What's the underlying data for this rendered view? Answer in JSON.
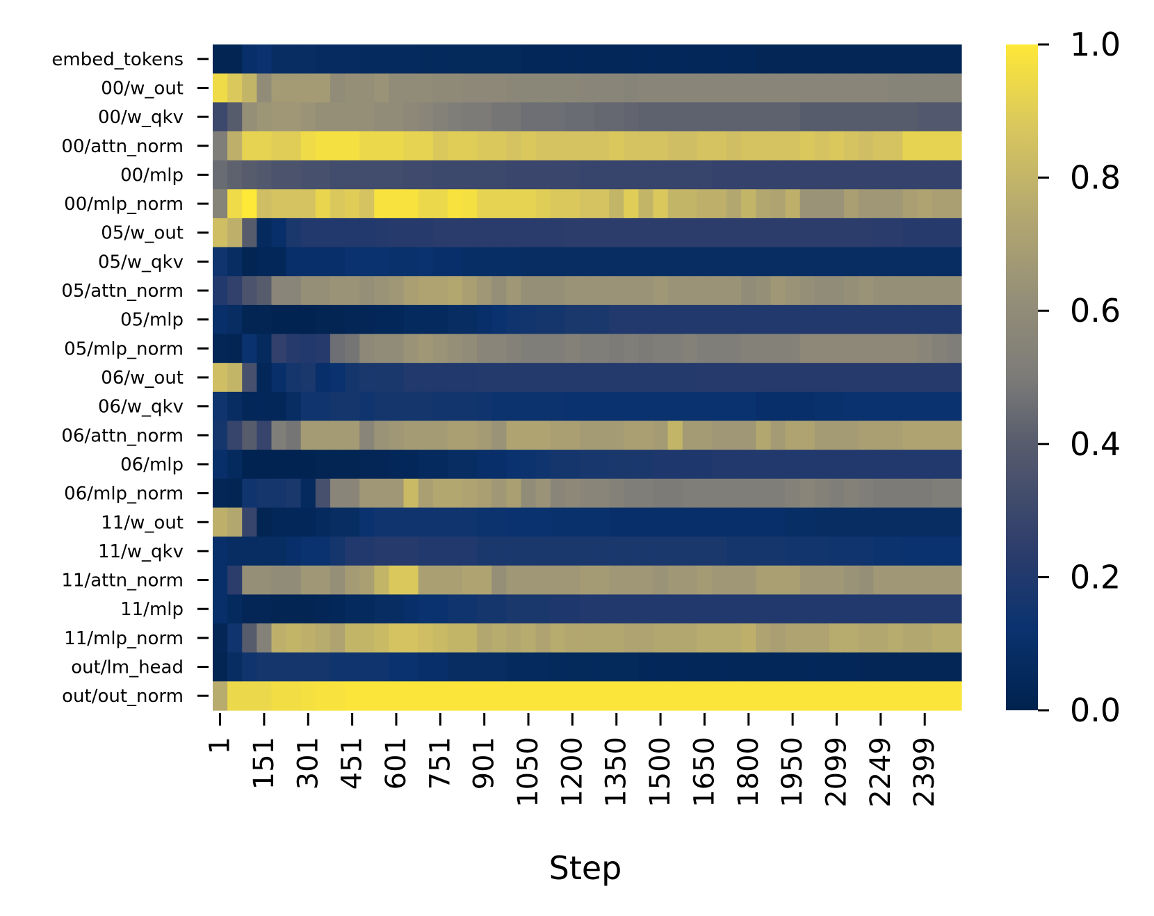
{
  "chart_data": {
    "type": "heatmap",
    "title": "",
    "xlabel": "Step",
    "ylabel": "",
    "colormap": "cividis",
    "colors": {
      "low": "#00224e",
      "mid": "#7c7b78",
      "high": "#fee838"
    },
    "value_range": [
      0,
      1
    ],
    "colorbar_ticks": [
      "0.0",
      "0.2",
      "0.4",
      "0.6",
      "0.8",
      "1.0"
    ],
    "x_tick_labels": [
      "1",
      "151",
      "301",
      "451",
      "601",
      "751",
      "901",
      "1050",
      "1200",
      "1350",
      "1500",
      "1650",
      "1800",
      "1950",
      "2099",
      "2249",
      "2399"
    ],
    "rows": [
      "embed_tokens",
      "00/w_out",
      "00/w_qkv",
      "00/attn_norm",
      "00/mlp",
      "00/mlp_norm",
      "05/w_out",
      "05/w_qkv",
      "05/attn_norm",
      "05/mlp",
      "05/mlp_norm",
      "06/w_out",
      "06/w_qkv",
      "06/attn_norm",
      "06/mlp",
      "06/mlp_norm",
      "11/w_out",
      "11/w_qkv",
      "11/attn_norm",
      "11/mlp",
      "11/mlp_norm",
      "out/lm_head",
      "out/out_norm"
    ],
    "n_columns": 51,
    "values": [
      [
        0.02,
        0.02,
        0.1,
        0.12,
        0.08,
        0.08,
        0.08,
        0.07,
        0.07,
        0.07,
        0.06,
        0.06,
        0.06,
        0.06,
        0.05,
        0.05,
        0.05,
        0.05,
        0.05,
        0.05,
        0.05,
        0.04,
        0.04,
        0.04,
        0.04,
        0.04,
        0.04,
        0.04,
        0.04,
        0.04,
        0.04,
        0.04,
        0.04,
        0.04,
        0.04,
        0.04,
        0.04,
        0.03,
        0.03,
        0.03,
        0.03,
        0.03,
        0.03,
        0.03,
        0.03,
        0.03,
        0.03,
        0.03,
        0.03,
        0.03,
        0.03
      ],
      [
        0.95,
        0.88,
        0.8,
        0.6,
        0.68,
        0.68,
        0.68,
        0.68,
        0.6,
        0.62,
        0.62,
        0.64,
        0.6,
        0.6,
        0.6,
        0.59,
        0.59,
        0.58,
        0.58,
        0.58,
        0.57,
        0.57,
        0.57,
        0.57,
        0.57,
        0.56,
        0.56,
        0.56,
        0.55,
        0.56,
        0.56,
        0.56,
        0.56,
        0.56,
        0.56,
        0.56,
        0.56,
        0.56,
        0.56,
        0.56,
        0.56,
        0.56,
        0.56,
        0.56,
        0.56,
        0.56,
        0.55,
        0.55,
        0.55,
        0.55,
        0.55
      ],
      [
        0.3,
        0.4,
        0.62,
        0.65,
        0.66,
        0.66,
        0.64,
        0.62,
        0.62,
        0.62,
        0.62,
        0.6,
        0.6,
        0.58,
        0.56,
        0.54,
        0.52,
        0.5,
        0.5,
        0.48,
        0.48,
        0.46,
        0.46,
        0.46,
        0.45,
        0.45,
        0.44,
        0.44,
        0.43,
        0.42,
        0.42,
        0.42,
        0.42,
        0.42,
        0.42,
        0.42,
        0.42,
        0.42,
        0.42,
        0.42,
        0.4,
        0.4,
        0.4,
        0.4,
        0.4,
        0.4,
        0.4,
        0.4,
        0.38,
        0.38,
        0.38
      ],
      [
        0.52,
        0.78,
        0.92,
        0.92,
        0.9,
        0.9,
        0.95,
        0.97,
        0.97,
        0.97,
        0.94,
        0.94,
        0.94,
        0.92,
        0.92,
        0.88,
        0.9,
        0.9,
        0.88,
        0.88,
        0.86,
        0.88,
        0.86,
        0.86,
        0.86,
        0.86,
        0.86,
        0.88,
        0.86,
        0.86,
        0.86,
        0.84,
        0.84,
        0.86,
        0.86,
        0.84,
        0.86,
        0.86,
        0.86,
        0.86,
        0.88,
        0.86,
        0.88,
        0.86,
        0.84,
        0.86,
        0.86,
        0.92,
        0.92,
        0.92,
        0.92
      ],
      [
        0.45,
        0.42,
        0.4,
        0.38,
        0.36,
        0.36,
        0.34,
        0.34,
        0.32,
        0.32,
        0.32,
        0.32,
        0.32,
        0.31,
        0.31,
        0.3,
        0.3,
        0.3,
        0.3,
        0.3,
        0.29,
        0.29,
        0.29,
        0.29,
        0.29,
        0.28,
        0.28,
        0.28,
        0.28,
        0.28,
        0.28,
        0.28,
        0.28,
        0.28,
        0.27,
        0.27,
        0.27,
        0.27,
        0.27,
        0.27,
        0.27,
        0.27,
        0.27,
        0.27,
        0.27,
        0.27,
        0.27,
        0.27,
        0.27,
        0.27,
        0.27
      ],
      [
        0.55,
        0.95,
        1.0,
        0.84,
        0.86,
        0.86,
        0.86,
        0.93,
        0.88,
        0.9,
        0.86,
        0.98,
        0.98,
        0.98,
        0.94,
        0.94,
        0.98,
        0.97,
        0.92,
        0.92,
        0.92,
        0.92,
        0.9,
        0.88,
        0.88,
        0.86,
        0.86,
        0.8,
        0.9,
        0.8,
        0.88,
        0.8,
        0.8,
        0.78,
        0.78,
        0.74,
        0.8,
        0.74,
        0.72,
        0.78,
        0.64,
        0.64,
        0.64,
        0.7,
        0.66,
        0.66,
        0.66,
        0.7,
        0.72,
        0.7,
        0.7
      ],
      [
        0.84,
        0.78,
        0.4,
        0.06,
        0.1,
        0.18,
        0.2,
        0.2,
        0.2,
        0.2,
        0.2,
        0.21,
        0.22,
        0.22,
        0.22,
        0.23,
        0.23,
        0.23,
        0.23,
        0.23,
        0.23,
        0.23,
        0.23,
        0.23,
        0.24,
        0.24,
        0.24,
        0.24,
        0.24,
        0.24,
        0.24,
        0.24,
        0.24,
        0.24,
        0.24,
        0.24,
        0.24,
        0.24,
        0.24,
        0.24,
        0.24,
        0.24,
        0.24,
        0.24,
        0.24,
        0.23,
        0.23,
        0.22,
        0.22,
        0.22,
        0.22
      ],
      [
        0.14,
        0.08,
        0.02,
        0.04,
        0.04,
        0.1,
        0.1,
        0.1,
        0.1,
        0.12,
        0.12,
        0.12,
        0.11,
        0.11,
        0.12,
        0.1,
        0.1,
        0.09,
        0.09,
        0.09,
        0.09,
        0.08,
        0.08,
        0.08,
        0.08,
        0.08,
        0.08,
        0.08,
        0.08,
        0.08,
        0.08,
        0.08,
        0.08,
        0.08,
        0.08,
        0.08,
        0.08,
        0.08,
        0.08,
        0.08,
        0.08,
        0.08,
        0.08,
        0.08,
        0.08,
        0.08,
        0.08,
        0.08,
        0.08,
        0.08,
        0.08
      ],
      [
        0.2,
        0.26,
        0.36,
        0.4,
        0.56,
        0.56,
        0.62,
        0.62,
        0.64,
        0.64,
        0.62,
        0.64,
        0.66,
        0.7,
        0.72,
        0.72,
        0.74,
        0.7,
        0.66,
        0.62,
        0.66,
        0.62,
        0.62,
        0.62,
        0.64,
        0.64,
        0.64,
        0.64,
        0.64,
        0.64,
        0.66,
        0.64,
        0.64,
        0.64,
        0.64,
        0.64,
        0.6,
        0.62,
        0.66,
        0.64,
        0.62,
        0.6,
        0.6,
        0.62,
        0.64,
        0.62,
        0.62,
        0.62,
        0.62,
        0.62,
        0.62
      ],
      [
        0.1,
        0.08,
        0.02,
        0.02,
        0.01,
        0.01,
        0.01,
        0.02,
        0.02,
        0.03,
        0.03,
        0.04,
        0.04,
        0.06,
        0.06,
        0.06,
        0.08,
        0.08,
        0.1,
        0.12,
        0.14,
        0.15,
        0.16,
        0.16,
        0.18,
        0.18,
        0.18,
        0.2,
        0.2,
        0.2,
        0.2,
        0.2,
        0.2,
        0.2,
        0.2,
        0.2,
        0.2,
        0.2,
        0.2,
        0.2,
        0.2,
        0.2,
        0.2,
        0.2,
        0.2,
        0.2,
        0.2,
        0.2,
        0.2,
        0.2,
        0.2
      ],
      [
        0.03,
        0.02,
        0.12,
        0.06,
        0.26,
        0.22,
        0.2,
        0.22,
        0.46,
        0.48,
        0.58,
        0.6,
        0.6,
        0.64,
        0.66,
        0.64,
        0.62,
        0.6,
        0.56,
        0.56,
        0.54,
        0.52,
        0.52,
        0.52,
        0.54,
        0.52,
        0.52,
        0.5,
        0.52,
        0.5,
        0.52,
        0.52,
        0.54,
        0.52,
        0.52,
        0.52,
        0.54,
        0.54,
        0.54,
        0.54,
        0.58,
        0.58,
        0.58,
        0.58,
        0.58,
        0.58,
        0.58,
        0.58,
        0.56,
        0.54,
        0.52
      ],
      [
        0.84,
        0.8,
        0.34,
        0.04,
        0.1,
        0.16,
        0.18,
        0.1,
        0.12,
        0.16,
        0.18,
        0.18,
        0.18,
        0.2,
        0.2,
        0.2,
        0.2,
        0.2,
        0.21,
        0.21,
        0.21,
        0.21,
        0.21,
        0.21,
        0.21,
        0.21,
        0.21,
        0.21,
        0.21,
        0.21,
        0.21,
        0.21,
        0.21,
        0.22,
        0.22,
        0.22,
        0.22,
        0.22,
        0.22,
        0.22,
        0.22,
        0.22,
        0.22,
        0.22,
        0.22,
        0.22,
        0.22,
        0.22,
        0.22,
        0.22,
        0.22
      ],
      [
        0.14,
        0.08,
        0.04,
        0.04,
        0.04,
        0.08,
        0.14,
        0.14,
        0.16,
        0.16,
        0.14,
        0.16,
        0.16,
        0.16,
        0.16,
        0.15,
        0.15,
        0.15,
        0.14,
        0.13,
        0.13,
        0.13,
        0.13,
        0.13,
        0.12,
        0.12,
        0.12,
        0.12,
        0.12,
        0.12,
        0.12,
        0.12,
        0.12,
        0.12,
        0.12,
        0.12,
        0.12,
        0.1,
        0.1,
        0.1,
        0.1,
        0.11,
        0.11,
        0.12,
        0.12,
        0.12,
        0.12,
        0.12,
        0.12,
        0.12,
        0.12
      ],
      [
        0.16,
        0.28,
        0.4,
        0.28,
        0.52,
        0.48,
        0.68,
        0.68,
        0.68,
        0.68,
        0.56,
        0.64,
        0.66,
        0.68,
        0.68,
        0.68,
        0.7,
        0.7,
        0.68,
        0.64,
        0.72,
        0.72,
        0.72,
        0.7,
        0.7,
        0.68,
        0.68,
        0.68,
        0.7,
        0.7,
        0.68,
        0.8,
        0.68,
        0.68,
        0.66,
        0.66,
        0.66,
        0.74,
        0.68,
        0.72,
        0.72,
        0.68,
        0.68,
        0.68,
        0.7,
        0.7,
        0.7,
        0.72,
        0.72,
        0.72,
        0.72
      ],
      [
        0.1,
        0.06,
        0.01,
        0.01,
        0.01,
        0.01,
        0.01,
        0.02,
        0.02,
        0.02,
        0.03,
        0.03,
        0.04,
        0.04,
        0.06,
        0.06,
        0.08,
        0.08,
        0.1,
        0.1,
        0.12,
        0.13,
        0.14,
        0.16,
        0.16,
        0.17,
        0.17,
        0.18,
        0.18,
        0.18,
        0.19,
        0.19,
        0.19,
        0.19,
        0.2,
        0.2,
        0.2,
        0.2,
        0.2,
        0.2,
        0.2,
        0.2,
        0.2,
        0.2,
        0.2,
        0.2,
        0.2,
        0.2,
        0.2,
        0.2,
        0.2
      ],
      [
        0.03,
        0.02,
        0.14,
        0.16,
        0.16,
        0.18,
        0.06,
        0.34,
        0.56,
        0.56,
        0.66,
        0.66,
        0.66,
        0.82,
        0.7,
        0.74,
        0.74,
        0.72,
        0.7,
        0.66,
        0.7,
        0.6,
        0.64,
        0.56,
        0.58,
        0.56,
        0.56,
        0.54,
        0.52,
        0.52,
        0.5,
        0.5,
        0.52,
        0.52,
        0.52,
        0.52,
        0.52,
        0.52,
        0.52,
        0.54,
        0.56,
        0.54,
        0.52,
        0.54,
        0.52,
        0.5,
        0.5,
        0.5,
        0.5,
        0.52,
        0.52
      ],
      [
        0.78,
        0.74,
        0.28,
        0.02,
        0.04,
        0.04,
        0.04,
        0.06,
        0.08,
        0.08,
        0.12,
        0.14,
        0.14,
        0.14,
        0.14,
        0.14,
        0.14,
        0.14,
        0.13,
        0.13,
        0.12,
        0.12,
        0.12,
        0.11,
        0.11,
        0.11,
        0.11,
        0.1,
        0.1,
        0.1,
        0.1,
        0.1,
        0.1,
        0.1,
        0.1,
        0.1,
        0.1,
        0.1,
        0.1,
        0.09,
        0.09,
        0.08,
        0.08,
        0.08,
        0.08,
        0.08,
        0.08,
        0.08,
        0.08,
        0.08,
        0.08
      ],
      [
        0.1,
        0.08,
        0.08,
        0.08,
        0.08,
        0.1,
        0.12,
        0.12,
        0.16,
        0.2,
        0.2,
        0.22,
        0.22,
        0.22,
        0.2,
        0.2,
        0.2,
        0.2,
        0.18,
        0.18,
        0.18,
        0.18,
        0.18,
        0.18,
        0.18,
        0.18,
        0.18,
        0.18,
        0.18,
        0.18,
        0.18,
        0.18,
        0.18,
        0.18,
        0.18,
        0.16,
        0.16,
        0.16,
        0.16,
        0.15,
        0.15,
        0.15,
        0.14,
        0.14,
        0.14,
        0.13,
        0.13,
        0.12,
        0.12,
        0.12,
        0.12
      ],
      [
        0.1,
        0.24,
        0.62,
        0.62,
        0.6,
        0.6,
        0.66,
        0.66,
        0.62,
        0.68,
        0.7,
        0.8,
        0.88,
        0.88,
        0.7,
        0.7,
        0.7,
        0.72,
        0.72,
        0.62,
        0.66,
        0.66,
        0.66,
        0.66,
        0.66,
        0.68,
        0.68,
        0.66,
        0.66,
        0.66,
        0.64,
        0.66,
        0.66,
        0.68,
        0.66,
        0.66,
        0.66,
        0.7,
        0.7,
        0.7,
        0.66,
        0.66,
        0.66,
        0.64,
        0.62,
        0.66,
        0.66,
        0.66,
        0.66,
        0.66,
        0.66
      ],
      [
        0.1,
        0.06,
        0.03,
        0.03,
        0.02,
        0.02,
        0.02,
        0.03,
        0.04,
        0.06,
        0.06,
        0.08,
        0.08,
        0.1,
        0.12,
        0.12,
        0.14,
        0.14,
        0.16,
        0.16,
        0.18,
        0.18,
        0.18,
        0.19,
        0.19,
        0.2,
        0.2,
        0.2,
        0.2,
        0.2,
        0.2,
        0.2,
        0.2,
        0.2,
        0.2,
        0.2,
        0.2,
        0.2,
        0.2,
        0.2,
        0.2,
        0.2,
        0.2,
        0.2,
        0.2,
        0.2,
        0.2,
        0.2,
        0.2,
        0.2,
        0.2
      ],
      [
        0.03,
        0.14,
        0.4,
        0.54,
        0.78,
        0.8,
        0.78,
        0.76,
        0.72,
        0.8,
        0.8,
        0.82,
        0.86,
        0.86,
        0.84,
        0.82,
        0.8,
        0.8,
        0.74,
        0.76,
        0.74,
        0.76,
        0.72,
        0.76,
        0.74,
        0.74,
        0.74,
        0.74,
        0.72,
        0.72,
        0.74,
        0.74,
        0.74,
        0.76,
        0.76,
        0.76,
        0.78,
        0.72,
        0.7,
        0.72,
        0.72,
        0.72,
        0.76,
        0.76,
        0.74,
        0.74,
        0.76,
        0.74,
        0.74,
        0.76,
        0.76
      ],
      [
        0.02,
        0.08,
        0.14,
        0.16,
        0.16,
        0.16,
        0.16,
        0.16,
        0.14,
        0.14,
        0.14,
        0.14,
        0.12,
        0.12,
        0.1,
        0.1,
        0.08,
        0.08,
        0.08,
        0.08,
        0.06,
        0.06,
        0.06,
        0.05,
        0.05,
        0.05,
        0.05,
        0.05,
        0.05,
        0.04,
        0.04,
        0.04,
        0.04,
        0.04,
        0.04,
        0.04,
        0.04,
        0.04,
        0.04,
        0.04,
        0.04,
        0.04,
        0.04,
        0.04,
        0.03,
        0.03,
        0.03,
        0.03,
        0.03,
        0.03,
        0.03
      ],
      [
        0.76,
        0.94,
        0.94,
        0.94,
        0.96,
        0.96,
        0.97,
        0.98,
        0.98,
        0.99,
        0.99,
        0.99,
        0.99,
        0.99,
        0.99,
        0.99,
        0.99,
        0.99,
        0.99,
        0.99,
        0.99,
        0.99,
        0.99,
        0.99,
        0.99,
        0.99,
        0.99,
        0.99,
        0.99,
        0.99,
        0.99,
        0.99,
        0.99,
        0.99,
        0.99,
        0.99,
        0.99,
        0.99,
        0.99,
        0.99,
        0.99,
        0.99,
        0.99,
        0.99,
        0.99,
        0.99,
        0.99,
        0.99,
        0.99,
        0.99,
        0.99
      ]
    ]
  }
}
